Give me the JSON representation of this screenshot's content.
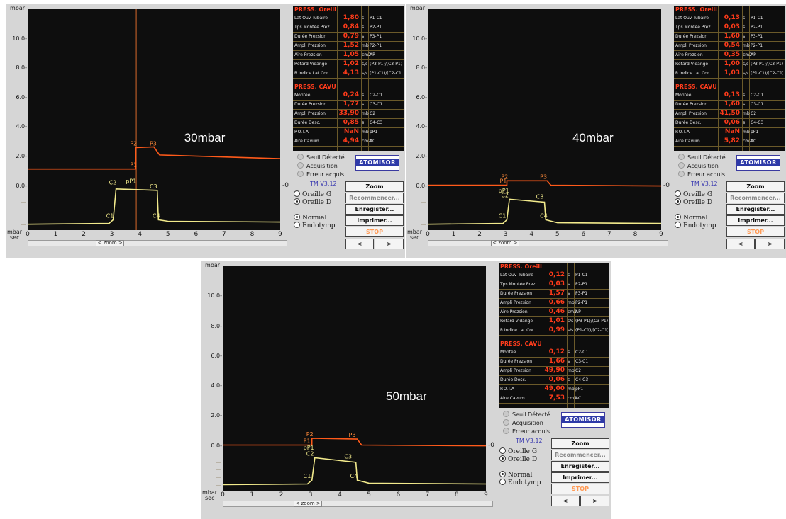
{
  "axis": {
    "y_unit": "mbar",
    "x_unit_top": "mbar",
    "x_unit_bottom": "sec",
    "y_ticks": [
      "10.0-",
      "8.0-",
      "6.0-",
      "4.0-",
      "2.0-",
      "0.0-"
    ],
    "x_ticks": [
      "0",
      "1",
      "2",
      "3",
      "4",
      "5",
      "6",
      "7",
      "8",
      "9"
    ],
    "right_zero": "-0",
    "zoom_label": "< zoom >"
  },
  "press_oreille": {
    "header": "PRESS. Oreill",
    "rows": [
      {
        "name": "Lat Ouv Tubaire",
        "unit": "s",
        "formula": "P1-C1"
      },
      {
        "name": "Tps Montée Prez",
        "unit": "s",
        "formula": "P2-P1"
      },
      {
        "name": "Durée Prezsion",
        "unit": "s",
        "formula": "P3-P1"
      },
      {
        "name": "Ampli Prezsion",
        "unit": "mb",
        "formula": "P2-P1"
      },
      {
        "name": "Aire Prezsion",
        "unit": "cm2",
        "formula": "AP"
      },
      {
        "name": "Retard Vidange",
        "unit": "s/s",
        "formula": "(P3-P1)/(C3-P1)"
      },
      {
        "name": "R.Indice Lat Cor.",
        "unit": "s/s",
        "formula": "(P1-C1)/(C2-C1)"
      }
    ]
  },
  "press_cavum": {
    "header": "PRESS. CAVU",
    "rows": [
      {
        "name": "Montée",
        "unit": "s",
        "formula": "C2-C1"
      },
      {
        "name": "Durée Prezsion",
        "unit": "s",
        "formula": "C3-C1"
      },
      {
        "name": "Ampli Prezsion",
        "unit": "mb",
        "formula": "C2"
      },
      {
        "name": "Durée Desc.",
        "unit": "s",
        "formula": "C4-C3"
      },
      {
        "name": "P.O.T.A",
        "unit": "mb",
        "formula": "pP1"
      },
      {
        "name": "Aire Cavum",
        "unit": "cm2",
        "formula": "AC"
      }
    ]
  },
  "status": {
    "items": [
      "Seuil Détecté",
      "Acquisition",
      "Erreur acquis."
    ],
    "version": "TM V3.12",
    "logo": "ATOMISOR"
  },
  "buttons": {
    "zoom": "Zoom",
    "restart": "Recommencer...",
    "save": "Enregister...",
    "print": "Imprimer...",
    "stop": "STOP",
    "prev": "<",
    "next": ">"
  },
  "radios": {
    "ear_left": "Oreille G",
    "ear_right": "Oreille D",
    "mode_normal": "Normal",
    "mode_endo": "Endotymp"
  },
  "screens": [
    {
      "caption": "30mbar",
      "oreille_values": [
        "1,80",
        "0,84",
        "0,79",
        "1,52",
        "1,05",
        "1,02",
        "4,13"
      ],
      "cavum_values": [
        "0,24",
        "1,77",
        "33,90",
        "0,85",
        "NaN",
        "4,94"
      ],
      "chart_data": {
        "type": "line",
        "x_range": [
          0,
          9
        ],
        "series": [
          {
            "name": "PRESS. Oreill",
            "color": "#ff5a1a",
            "points": [
              [
                0,
                1.15
              ],
              [
                3.85,
                1.15
              ],
              [
                3.85,
                2.6
              ],
              [
                4.5,
                2.65
              ],
              [
                4.7,
                2.1
              ],
              [
                9,
                1.85
              ]
            ]
          },
          {
            "name": "PRESS. CAVU",
            "color": "#f2ea8c",
            "points": [
              [
                0,
                -2.6
              ],
              [
                2.9,
                -2.55
              ],
              [
                3.05,
                -2.3
              ],
              [
                3.15,
                -0.2
              ],
              [
                4.62,
                -0.3
              ],
              [
                4.66,
                -2.3
              ],
              [
                5,
                -2.4
              ],
              [
                9,
                -2.45
              ]
            ]
          }
        ],
        "markers": [
          {
            "label": "P1",
            "x": 3.9,
            "y": 1.15
          },
          {
            "label": "P2",
            "x": 3.9,
            "y": 2.6
          },
          {
            "label": "P3",
            "x": 4.6,
            "y": 2.6
          },
          {
            "label": "C1",
            "x": 3.05,
            "y": -2.3
          },
          {
            "label": "C2",
            "x": 3.15,
            "y": -0.05
          },
          {
            "label": "pP1",
            "x": 3.75,
            "y": 0.05
          },
          {
            "label": "C3",
            "x": 4.6,
            "y": -0.3
          },
          {
            "label": "C4",
            "x": 4.7,
            "y": -2.3
          }
        ],
        "cursor_x": 3.87
      }
    },
    {
      "caption": "40mbar",
      "oreille_values": [
        "0,13",
        "0,03",
        "1,60",
        "0,54",
        "0,35",
        "1,00",
        "1,03"
      ],
      "cavum_values": [
        "0,13",
        "1,60",
        "41,50",
        "0,06",
        "NaN",
        "5,82"
      ],
      "chart_data": {
        "type": "line",
        "x_range": [
          0,
          9
        ],
        "series": [
          {
            "name": "PRESS. Oreill",
            "color": "#ff5a1a",
            "points": [
              [
                0,
                0.05
              ],
              [
                3.05,
                0.05
              ],
              [
                3.05,
                0.35
              ],
              [
                4.6,
                0.35
              ],
              [
                4.75,
                0.05
              ],
              [
                9,
                0.0
              ]
            ]
          },
          {
            "name": "PRESS. CAVU",
            "color": "#f2ea8c",
            "points": [
              [
                0,
                -2.6
              ],
              [
                2.9,
                -2.55
              ],
              [
                3.05,
                -2.3
              ],
              [
                3.15,
                -0.9
              ],
              [
                4.5,
                -1.1
              ],
              [
                4.55,
                -2.3
              ],
              [
                5,
                -2.5
              ],
              [
                9,
                -2.55
              ]
            ]
          }
        ],
        "markers": [
          {
            "label": "P1",
            "x": 3.05,
            "y": 0.05
          },
          {
            "label": "P2",
            "x": 3.1,
            "y": 0.35
          },
          {
            "label": "P3",
            "x": 4.6,
            "y": 0.35
          },
          {
            "label": "C1",
            "x": 3.0,
            "y": -2.3
          },
          {
            "label": "C2",
            "x": 3.1,
            "y": -0.9
          },
          {
            "label": "pP1",
            "x": 3.0,
            "y": -0.6
          },
          {
            "label": "C3",
            "x": 4.45,
            "y": -1.0
          },
          {
            "label": "C4",
            "x": 4.6,
            "y": -2.3
          }
        ],
        "cursor_x": null
      }
    },
    {
      "caption": "50mbar",
      "oreille_values": [
        "0,12",
        "0,03",
        "1,57",
        "0,66",
        "0,46",
        "1,01",
        "0,99"
      ],
      "cavum_values": [
        "0,12",
        "1,66",
        "49,90",
        "0,06",
        "49,00",
        "7,53"
      ],
      "chart_data": {
        "type": "line",
        "x_range": [
          0,
          9
        ],
        "series": [
          {
            "name": "PRESS. Oreill",
            "color": "#ff5a1a",
            "points": [
              [
                0,
                0.05
              ],
              [
                3.05,
                0.05
              ],
              [
                3.05,
                0.5
              ],
              [
                4.6,
                0.45
              ],
              [
                4.75,
                0.05
              ],
              [
                9,
                0.0
              ]
            ]
          },
          {
            "name": "PRESS. CAVU",
            "color": "#f2ea8c",
            "points": [
              [
                0,
                -2.6
              ],
              [
                2.9,
                -2.55
              ],
              [
                3.05,
                -2.3
              ],
              [
                3.15,
                -0.8
              ],
              [
                4.55,
                -1.1
              ],
              [
                4.6,
                -2.3
              ],
              [
                5,
                -2.5
              ],
              [
                9,
                -2.55
              ]
            ]
          }
        ],
        "markers": [
          {
            "label": "P1",
            "x": 3.0,
            "y": 0.05
          },
          {
            "label": "P2",
            "x": 3.1,
            "y": 0.5
          },
          {
            "label": "P3",
            "x": 4.55,
            "y": 0.45
          },
          {
            "label": "C1",
            "x": 3.0,
            "y": -2.3
          },
          {
            "label": "C2",
            "x": 3.1,
            "y": -0.8
          },
          {
            "label": "pP1",
            "x": 3.0,
            "y": -0.4
          },
          {
            "label": "C3",
            "x": 4.4,
            "y": -1.0
          },
          {
            "label": "C4",
            "x": 4.6,
            "y": -2.3
          }
        ],
        "cursor_x": null
      }
    }
  ]
}
